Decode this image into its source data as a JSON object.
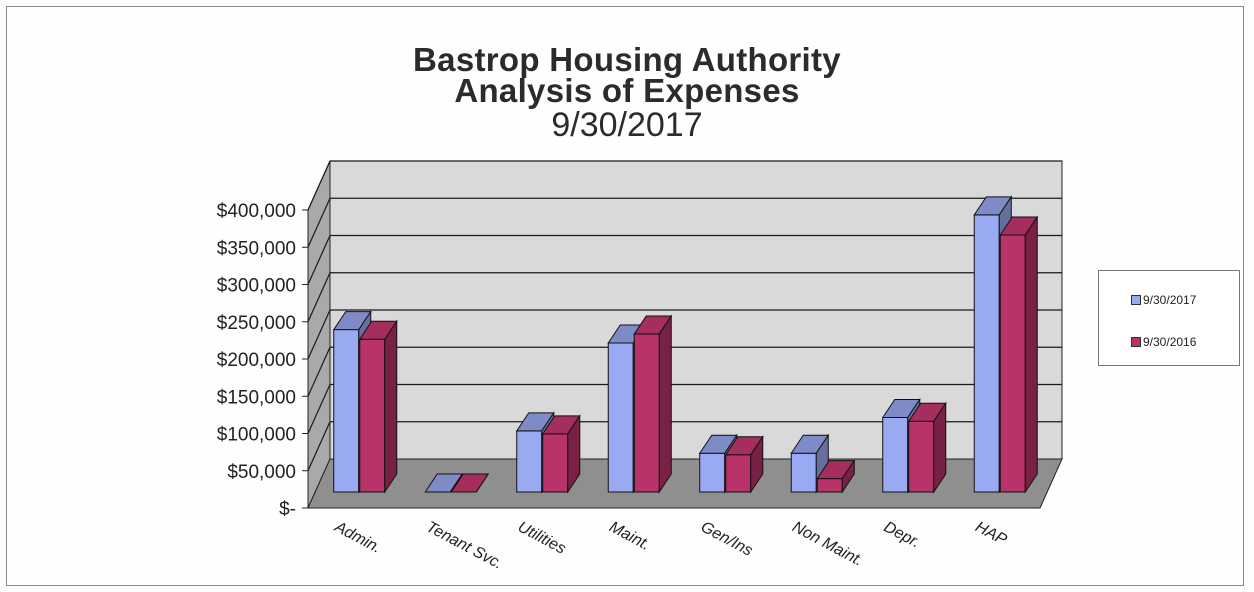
{
  "title": {
    "line1": "Bastrop Housing Authority",
    "line2": "Analysis of Expenses",
    "line3": "9/30/2017"
  },
  "legend": {
    "items": [
      {
        "label": "9/30/2017",
        "color": "#9aaaf2"
      },
      {
        "label": "9/30/2016",
        "color": "#b8336a"
      }
    ]
  },
  "chart_data": {
    "type": "bar",
    "title": "Bastrop Housing Authority Analysis of Expenses 9/30/2017",
    "categories": [
      "Admin.",
      "Tenant Svc.",
      "Utilities",
      "Maint.",
      "Gen/Ins",
      "Non Maint.",
      "Depr.",
      "HAP"
    ],
    "series": [
      {
        "name": "9/30/2017",
        "color": "#9aaaf2",
        "values": [
          218000,
          0,
          82000,
          200000,
          52000,
          52000,
          100000,
          372000
        ]
      },
      {
        "name": "9/30/2016",
        "color": "#b8336a",
        "values": [
          205000,
          0,
          78000,
          212000,
          50000,
          18000,
          95000,
          345000
        ]
      }
    ],
    "ylim": [
      0,
      400000
    ],
    "yticks": [
      {
        "value": 0,
        "label": "$-"
      },
      {
        "value": 50000,
        "label": "$50,000"
      },
      {
        "value": 100000,
        "label": "$100,000"
      },
      {
        "value": 150000,
        "label": "$150,000"
      },
      {
        "value": 200000,
        "label": "$200,000"
      },
      {
        "value": 250000,
        "label": "$250,000"
      },
      {
        "value": 300000,
        "label": "$300,000"
      },
      {
        "value": 350000,
        "label": "$350,000"
      },
      {
        "value": 400000,
        "label": "$400,000"
      }
    ],
    "grid": true,
    "three_d": true,
    "legend_position": "right"
  }
}
